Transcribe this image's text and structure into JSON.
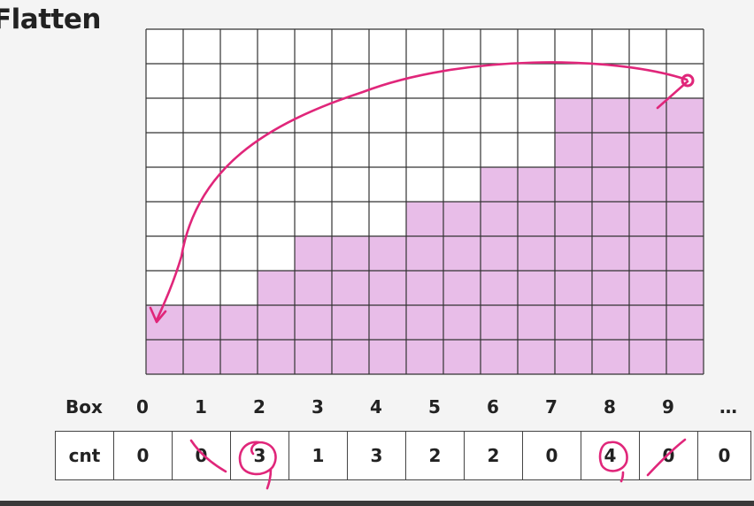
{
  "title": "Flatten",
  "grid": {
    "columns": 15,
    "rows": 10,
    "fill_color": "#e8bde8",
    "line_color": "#333333"
  },
  "column_heights": [
    2,
    2,
    2,
    3,
    4,
    4,
    4,
    5,
    5,
    6,
    6,
    8,
    8,
    8,
    8
  ],
  "box_row": {
    "label": "Box",
    "indices": [
      "0",
      "1",
      "2",
      "3",
      "4",
      "5",
      "6",
      "7",
      "8",
      "9",
      "…"
    ]
  },
  "cnt_row": {
    "label": "cnt",
    "values": [
      "0",
      "0",
      "3",
      "1",
      "3",
      "2",
      "2",
      "0",
      "4",
      "0",
      "0"
    ]
  },
  "annotation_color": "#e0267a"
}
